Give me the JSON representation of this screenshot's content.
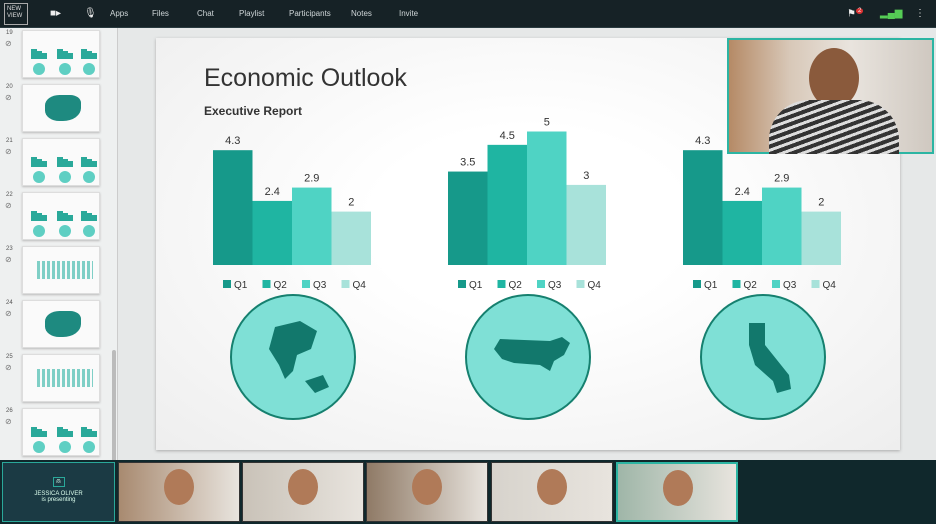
{
  "topbar": {
    "logo": "NEW VIEW",
    "nav": [
      "Apps",
      "Files",
      "Chat",
      "Playlist",
      "Participants",
      "Notes",
      "Invite"
    ],
    "notification_count": "2"
  },
  "sidebar": {
    "slides": [
      {
        "num": "19",
        "kind": "charts"
      },
      {
        "num": "20",
        "kind": "usmap"
      },
      {
        "num": "21",
        "kind": "charts"
      },
      {
        "num": "22",
        "kind": "charts"
      },
      {
        "num": "23",
        "kind": "world"
      },
      {
        "num": "24",
        "kind": "usmap"
      },
      {
        "num": "25",
        "kind": "world"
      },
      {
        "num": "26",
        "kind": "charts"
      }
    ]
  },
  "slide": {
    "title": "Economic Outlook",
    "subtitle": "Executive Report",
    "maps": [
      "north-america",
      "usa",
      "california"
    ]
  },
  "chart_data": [
    {
      "type": "bar",
      "categories": [
        "Q1",
        "Q2",
        "Q3",
        "Q4"
      ],
      "values": [
        4.3,
        2.4,
        2.9,
        2
      ],
      "legend": "bottom"
    },
    {
      "type": "bar",
      "categories": [
        "Q1",
        "Q2",
        "Q3",
        "Q4"
      ],
      "values": [
        3.5,
        4.5,
        5,
        3
      ],
      "legend": "bottom"
    },
    {
      "type": "bar",
      "categories": [
        "Q1",
        "Q2",
        "Q3",
        "Q4"
      ],
      "values": [
        4.3,
        2.4,
        2.9,
        2
      ],
      "legend": "bottom"
    }
  ],
  "colors": {
    "Q1": "#16998a",
    "Q2": "#1fb5a2",
    "Q3": "#4fd3c4",
    "Q4": "#a8e2da",
    "accent": "#2cb5a3"
  },
  "presenter": {
    "name": "JESSICA OLIVER",
    "status": "is presenting"
  }
}
